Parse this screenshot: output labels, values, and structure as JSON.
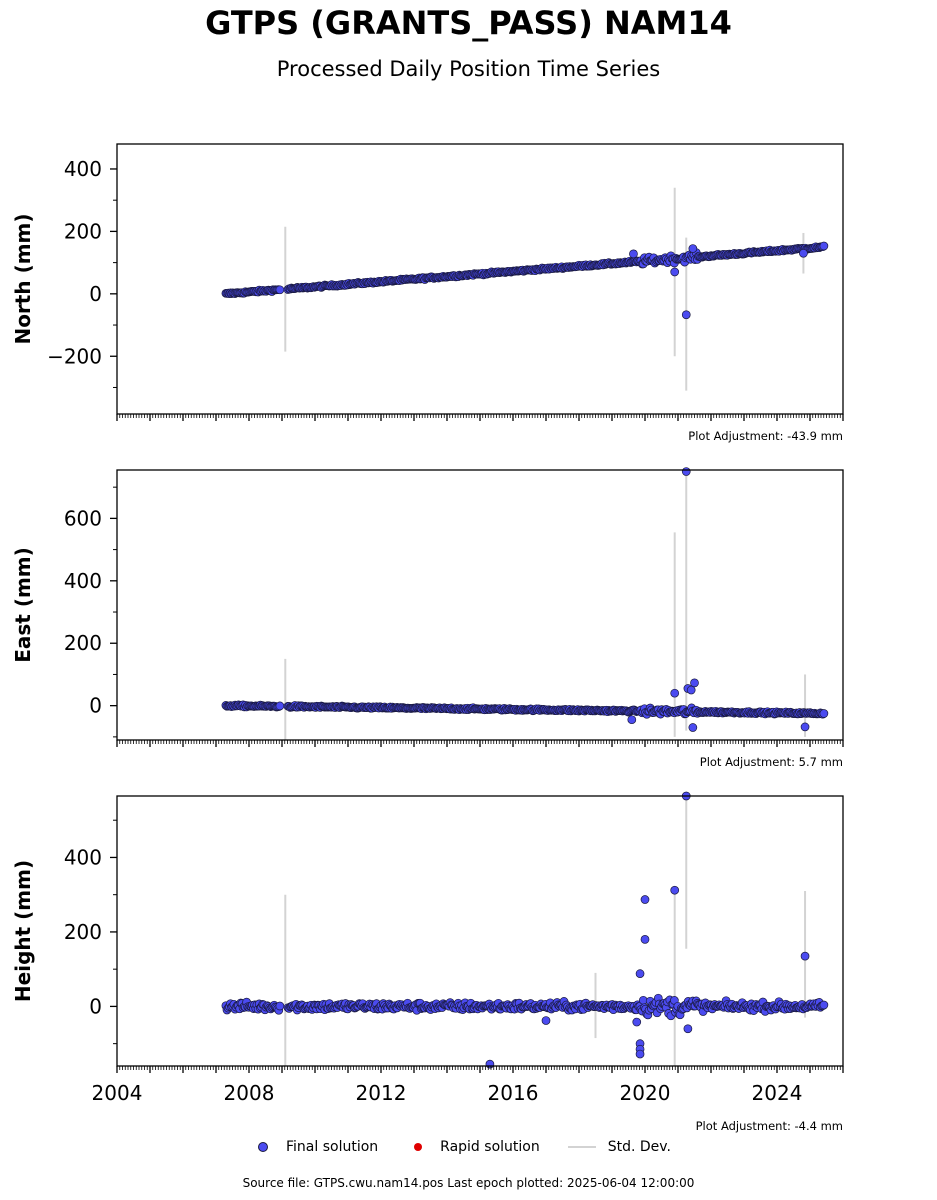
{
  "header": {
    "title": "GTPS (GRANTS_PASS) NAM14",
    "subtitle": "Processed Daily Position Time Series"
  },
  "legend": {
    "final": "Final solution",
    "rapid": "Rapid solution",
    "std": "Std. Dev."
  },
  "footer": {
    "source": "Source file: GTPS.cwu.nam14.pos  Last epoch plotted: 2025-06-04 12:00:00"
  },
  "colors": {
    "final": "#4b4bf0",
    "final_edge": "#1a1a40",
    "rapid": "#e00000",
    "std": "#d3d3d3"
  },
  "chart_data": [
    {
      "type": "scatter",
      "ylabel": "North (mm)",
      "adjustment": "Plot Adjustment: -43.9 mm",
      "xlim": [
        2004.0,
        2026.0
      ],
      "ylim": [
        -385,
        480
      ],
      "yticks": [
        -200,
        0,
        200,
        400
      ],
      "xticklabels": false,
      "trend": {
        "start": [
          2007.3,
          0
        ],
        "end": [
          2025.42,
          150
        ],
        "noise": 3
      },
      "outliers": [
        {
          "x": 2020.9,
          "y": 70,
          "err_low": -200,
          "err_high": 340
        },
        {
          "x": 2021.25,
          "y": -67,
          "err_low": -310,
          "err_high": 180
        },
        {
          "x": 2021.45,
          "y": 145
        },
        {
          "x": 2019.65,
          "y": 128
        },
        {
          "x": 2024.8,
          "y": 130,
          "err_low": 65,
          "err_high": 195
        }
      ],
      "error_bars": [
        {
          "x": 2009.1,
          "low": -185,
          "high": 215
        }
      ]
    },
    {
      "type": "scatter",
      "ylabel": "East (mm)",
      "adjustment": "Plot Adjustment: 5.7 mm",
      "xlim": [
        2004.0,
        2026.0
      ],
      "ylim": [
        -110,
        755
      ],
      "yticks": [
        0,
        200,
        400,
        600
      ],
      "xticklabels": false,
      "trend": {
        "start": [
          2007.3,
          0
        ],
        "end": [
          2025.42,
          -25
        ],
        "noise": 3
      },
      "outliers": [
        {
          "x": 2021.25,
          "y": 750,
          "err_low": -80,
          "err_high": 760
        },
        {
          "x": 2020.9,
          "y": 40,
          "err_low": -100,
          "err_high": 555
        },
        {
          "x": 2021.3,
          "y": 55
        },
        {
          "x": 2021.4,
          "y": 50
        },
        {
          "x": 2021.5,
          "y": 73
        },
        {
          "x": 2019.6,
          "y": -45
        },
        {
          "x": 2021.45,
          "y": -70
        },
        {
          "x": 2024.85,
          "y": -68,
          "err_low": -100,
          "err_high": 100
        }
      ],
      "error_bars": [
        {
          "x": 2009.1,
          "low": -110,
          "high": 150
        }
      ]
    },
    {
      "type": "scatter",
      "ylabel": "Height (mm)",
      "adjustment": "Plot Adjustment: -4.4 mm",
      "xlim": [
        2004.0,
        2026.0
      ],
      "ylim": [
        -160,
        565
      ],
      "yticks": [
        0,
        200,
        400
      ],
      "xticklabels": true,
      "xticks": [
        2004,
        2008,
        2012,
        2016,
        2020,
        2024
      ],
      "trend": {
        "start": [
          2007.3,
          0
        ],
        "end": [
          2025.42,
          0
        ],
        "noise": 10
      },
      "outliers": [
        {
          "x": 2021.25,
          "y": 565,
          "err_low": 155,
          "err_high": 565
        },
        {
          "x": 2020.9,
          "y": 312,
          "err_low": -160,
          "err_high": 320
        },
        {
          "x": 2020.0,
          "y": 287
        },
        {
          "x": 2020.0,
          "y": 180
        },
        {
          "x": 2019.85,
          "y": -100
        },
        {
          "x": 2019.85,
          "y": -115
        },
        {
          "x": 2019.85,
          "y": -128
        },
        {
          "x": 2019.75,
          "y": -42
        },
        {
          "x": 2021.3,
          "y": -60
        },
        {
          "x": 2017.0,
          "y": -38
        },
        {
          "x": 2015.3,
          "y": -155
        },
        {
          "x": 2024.85,
          "y": 135,
          "err_low": -30,
          "err_high": 310
        },
        {
          "x": 2019.85,
          "y": 88
        }
      ],
      "error_bars": [
        {
          "x": 2009.1,
          "low": -160,
          "high": 300
        },
        {
          "x": 2018.5,
          "low": -85,
          "high": 90
        }
      ]
    }
  ]
}
